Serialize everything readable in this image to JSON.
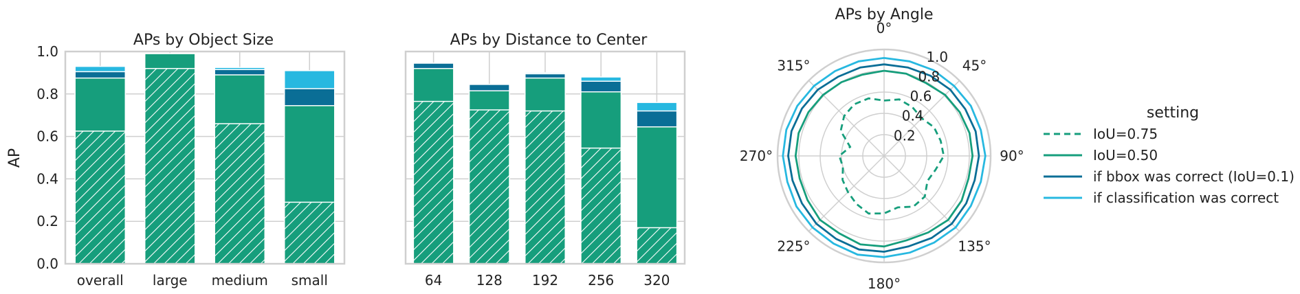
{
  "colors": {
    "iou075": "#169e7c",
    "iou050": "#169e7c",
    "bbox": "#0a6e96",
    "cls": "#27b8e0",
    "grid": "#cfcfcf"
  },
  "legend": {
    "title": "setting",
    "items": [
      {
        "label": "IoU=0.75",
        "color": "#169e7c",
        "dashed": true
      },
      {
        "label": "IoU=0.50",
        "color": "#169e7c",
        "dashed": false
      },
      {
        "label": "if bbox was correct (IoU=0.1)",
        "color": "#0a6e96",
        "dashed": false
      },
      {
        "label": "if classification was correct",
        "color": "#27b8e0",
        "dashed": false
      }
    ]
  },
  "chart_data": [
    {
      "type": "bar",
      "title": "APs by Object Size",
      "ylabel": "AP",
      "xlabel": "",
      "ylim": [
        0,
        1
      ],
      "yticks": [
        "0.0",
        "0.2",
        "0.4",
        "0.6",
        "0.8",
        "1.0"
      ],
      "categories": [
        "overall",
        "large",
        "medium",
        "small"
      ],
      "series": [
        {
          "name": "IoU=0.75",
          "values": [
            0.625,
            0.92,
            0.66,
            0.29
          ]
        },
        {
          "name": "IoU=0.50",
          "values": [
            0.875,
            0.99,
            0.89,
            0.745
          ]
        },
        {
          "name": "if bbox was correct (IoU=0.1)",
          "values": [
            0.905,
            0.99,
            0.915,
            0.825
          ]
        },
        {
          "name": "if classification was correct",
          "values": [
            0.93,
            0.99,
            0.925,
            0.91
          ]
        }
      ],
      "grid": true
    },
    {
      "type": "bar",
      "title": "APs by Distance to Center",
      "ylim": [
        0,
        1
      ],
      "categories": [
        "64",
        "128",
        "192",
        "256",
        "320"
      ],
      "series": [
        {
          "name": "IoU=0.75",
          "values": [
            0.765,
            0.725,
            0.72,
            0.545,
            0.17
          ]
        },
        {
          "name": "IoU=0.50",
          "values": [
            0.92,
            0.815,
            0.875,
            0.81,
            0.645
          ]
        },
        {
          "name": "if bbox was correct (IoU=0.1)",
          "values": [
            0.945,
            0.845,
            0.895,
            0.86,
            0.72
          ]
        },
        {
          "name": "if classification was correct",
          "values": [
            0.945,
            0.845,
            0.9,
            0.88,
            0.76
          ]
        }
      ],
      "grid": true
    },
    {
      "type": "polar-line",
      "title": "APs by Angle",
      "rlim": [
        0,
        1
      ],
      "rticks": [
        "0.2",
        "0.4",
        "0.6",
        "0.8",
        "1.0"
      ],
      "angle_labels": [
        "0°",
        "45°",
        "90°",
        "135°",
        "180°",
        "225°",
        "270°",
        "315°"
      ],
      "angles": [
        0,
        15,
        30,
        45,
        60,
        75,
        90,
        105,
        120,
        135,
        150,
        165,
        180,
        195,
        210,
        225,
        240,
        255,
        270,
        285,
        300,
        315,
        330,
        345
      ],
      "series": [
        {
          "name": "IoU=0.75",
          "dashed": true,
          "values": [
            0.52,
            0.55,
            0.53,
            0.5,
            0.54,
            0.55,
            0.56,
            0.5,
            0.47,
            0.54,
            0.55,
            0.5,
            0.54,
            0.56,
            0.52,
            0.48,
            0.45,
            0.4,
            0.42,
            0.33,
            0.47,
            0.53,
            0.56,
            0.56
          ]
        },
        {
          "name": "IoU=0.50",
          "values": [
            0.8,
            0.8,
            0.79,
            0.81,
            0.82,
            0.83,
            0.83,
            0.82,
            0.84,
            0.85,
            0.83,
            0.82,
            0.85,
            0.86,
            0.84,
            0.85,
            0.83,
            0.82,
            0.83,
            0.83,
            0.82,
            0.81,
            0.8,
            0.79
          ]
        },
        {
          "name": "if bbox was correct (IoU=0.1)",
          "values": [
            0.86,
            0.86,
            0.87,
            0.88,
            0.88,
            0.89,
            0.89,
            0.88,
            0.89,
            0.9,
            0.89,
            0.88,
            0.9,
            0.91,
            0.9,
            0.9,
            0.89,
            0.89,
            0.9,
            0.9,
            0.89,
            0.88,
            0.86,
            0.86
          ]
        },
        {
          "name": "if classification was correct",
          "values": [
            0.92,
            0.92,
            0.93,
            0.93,
            0.94,
            0.94,
            0.95,
            0.94,
            0.94,
            0.95,
            0.94,
            0.94,
            0.95,
            0.96,
            0.95,
            0.95,
            0.95,
            0.94,
            0.95,
            0.95,
            0.94,
            0.93,
            0.92,
            0.92
          ]
        }
      ],
      "grid": true
    }
  ]
}
